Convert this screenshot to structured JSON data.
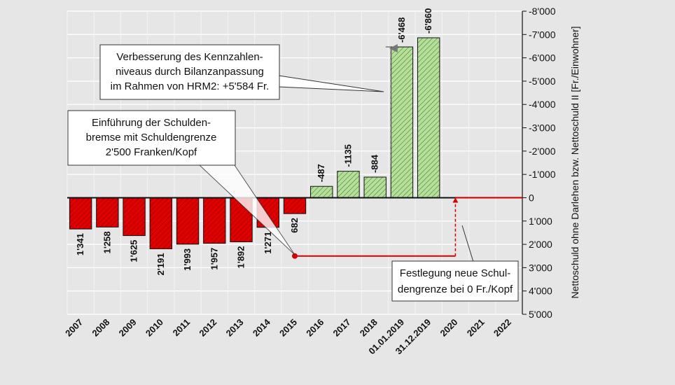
{
  "chart_data": {
    "type": "bar",
    "categories": [
      "2007",
      "2008",
      "2009",
      "2010",
      "2011",
      "2012",
      "2013",
      "2014",
      "2015",
      "2016",
      "2017",
      "2018",
      "01.01.2019",
      "31.12.2019",
      "2020",
      "2021",
      "2022"
    ],
    "values": [
      1341,
      1258,
      1625,
      2191,
      1993,
      1957,
      1892,
      1271,
      682,
      -487,
      -1135,
      -884,
      -6468,
      -6860,
      null,
      null,
      null
    ],
    "value_labels": [
      "1'341",
      "1'258",
      "1'625",
      "2'191",
      "1'993",
      "1'957",
      "1'892",
      "1'271",
      "682",
      "-487",
      "-1135",
      "-884",
      "-6'468",
      "-6'860",
      "",
      "",
      ""
    ],
    "ylabel": "Nettoschuld ohne Darlehen bzw. Nettoschuld II [Fr./Einwohner]",
    "ylim": [
      5000,
      -8000
    ],
    "y_axis_inverted": true,
    "y_ticks": [
      -8000,
      -7000,
      -6000,
      -5000,
      -4000,
      -3000,
      -2000,
      -1000,
      0,
      1000,
      2000,
      3000,
      4000,
      5000
    ],
    "y_tick_labels": [
      "-8'000",
      "-7'000",
      "-6'000",
      "-5'000",
      "-4'000",
      "-3'000",
      "-2'000",
      "-1'000",
      "0",
      "1'000",
      "2'000",
      "3'000",
      "4'000",
      "5'000"
    ],
    "grid": true,
    "colors": {
      "positive_debt": "#e00000",
      "negative_debt": "#b5e09a",
      "debt_limit_line": "#d40000"
    },
    "debt_limit": {
      "from_category": "2015",
      "to_category": "2020",
      "value_from": 2500,
      "value_to": 0
    },
    "annotations": [
      {
        "id": "hrm2",
        "lines": [
          "Verbesserung des Kennzahlen-",
          "niveaus durch Bilanzanpassung",
          "im Rahmen von HRM2: +5'584 Fr."
        ]
      },
      {
        "id": "schuldenbremse",
        "lines": [
          "Einführung der Schulden-",
          "bremse mit Schuldengrenze",
          "2'500 Franken/Kopf"
        ]
      },
      {
        "id": "neue-grenze",
        "lines": [
          "Festlegung neue Schul-",
          "dengrenze bei 0 Fr./Kopf"
        ]
      }
    ]
  }
}
